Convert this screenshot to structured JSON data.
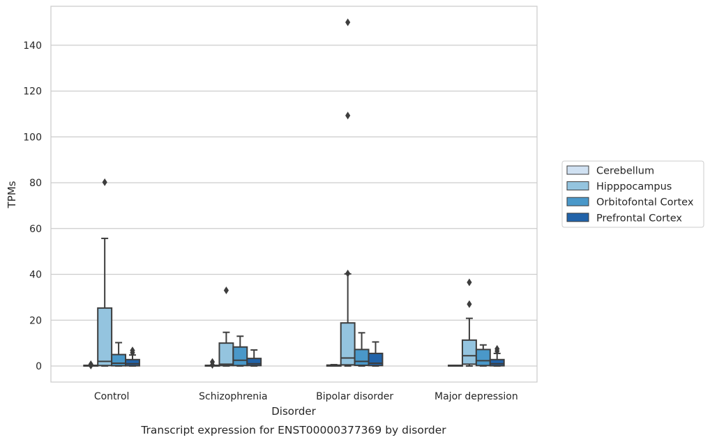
{
  "chart_data": {
    "type": "box",
    "xlabel": "Disorder",
    "ylabel": "TPMs",
    "caption": "Transcript expression for ENST00000377369 by disorder",
    "ylim": [
      -7,
      157
    ],
    "yticks": [
      0,
      20,
      40,
      60,
      80,
      100,
      120,
      140
    ],
    "grid": true,
    "legend_position": "right",
    "categories": [
      "Control",
      "Schizophrenia",
      "Bipolar disorder",
      "Major depression"
    ],
    "series": [
      {
        "name": "Cerebellum",
        "color": "#d0e1f2",
        "boxes": [
          {
            "whislo": 0,
            "q1": 0,
            "med": 0,
            "q3": 0.3,
            "whishi": 0.3,
            "fliers": [
              0.2,
              0.8
            ]
          },
          {
            "whislo": 0,
            "q1": 0,
            "med": 0,
            "q3": 0.3,
            "whishi": 0.3,
            "fliers": [
              0.5,
              1.8
            ]
          },
          {
            "whislo": 0,
            "q1": 0,
            "med": 0,
            "q3": 0.4,
            "whishi": 0.6,
            "fliers": []
          },
          {
            "whislo": 0,
            "q1": 0,
            "med": 0,
            "q3": 0.3,
            "whishi": 0.3,
            "fliers": []
          }
        ]
      },
      {
        "name": "Hipppocampus",
        "color": "#94c4df",
        "boxes": [
          {
            "whislo": 0,
            "q1": 0.2,
            "med": 2,
            "q3": 25.3,
            "whishi": 55.7,
            "fliers": [
              80.2
            ]
          },
          {
            "whislo": 0,
            "q1": 0.2,
            "med": 0.8,
            "q3": 10,
            "whishi": 14.7,
            "fliers": [
              33
            ]
          },
          {
            "whislo": 0,
            "q1": 0.5,
            "med": 3.5,
            "q3": 18.8,
            "whishi": 40.2,
            "fliers": [
              40.4,
              109.3,
              150
            ]
          },
          {
            "whislo": 0,
            "q1": 0.8,
            "med": 4.5,
            "q3": 11.3,
            "whishi": 20.8,
            "fliers": [
              27,
              36.5
            ]
          }
        ]
      },
      {
        "name": "Orbitofontal Cortex",
        "color": "#4a98c9",
        "boxes": [
          {
            "whislo": 0,
            "q1": 0.1,
            "med": 1.2,
            "q3": 5,
            "whishi": 10.2,
            "fliers": []
          },
          {
            "whislo": 0,
            "q1": 0.2,
            "med": 2.5,
            "q3": 8.3,
            "whishi": 13,
            "fliers": []
          },
          {
            "whislo": 0,
            "q1": 0.3,
            "med": 2,
            "q3": 7.2,
            "whishi": 14.5,
            "fliers": []
          },
          {
            "whislo": 0,
            "q1": 0.2,
            "med": 2.3,
            "q3": 7.2,
            "whishi": 9.2,
            "fliers": []
          }
        ]
      },
      {
        "name": "Prefrontal Cortex",
        "color": "#2163a9",
        "boxes": [
          {
            "whislo": 0,
            "q1": 0.1,
            "med": 1,
            "q3": 2.8,
            "whishi": 4.8,
            "fliers": [
              5.8,
              6.8
            ]
          },
          {
            "whislo": 0,
            "q1": 0.2,
            "med": 1,
            "q3": 3.3,
            "whishi": 7,
            "fliers": []
          },
          {
            "whislo": 0,
            "q1": 0.2,
            "med": 1.2,
            "q3": 5.5,
            "whishi": 10.5,
            "fliers": []
          },
          {
            "whislo": 0,
            "q1": 0.1,
            "med": 1,
            "q3": 2.8,
            "whishi": 5.5,
            "fliers": [
              6.5,
              7.5
            ]
          }
        ]
      }
    ]
  }
}
